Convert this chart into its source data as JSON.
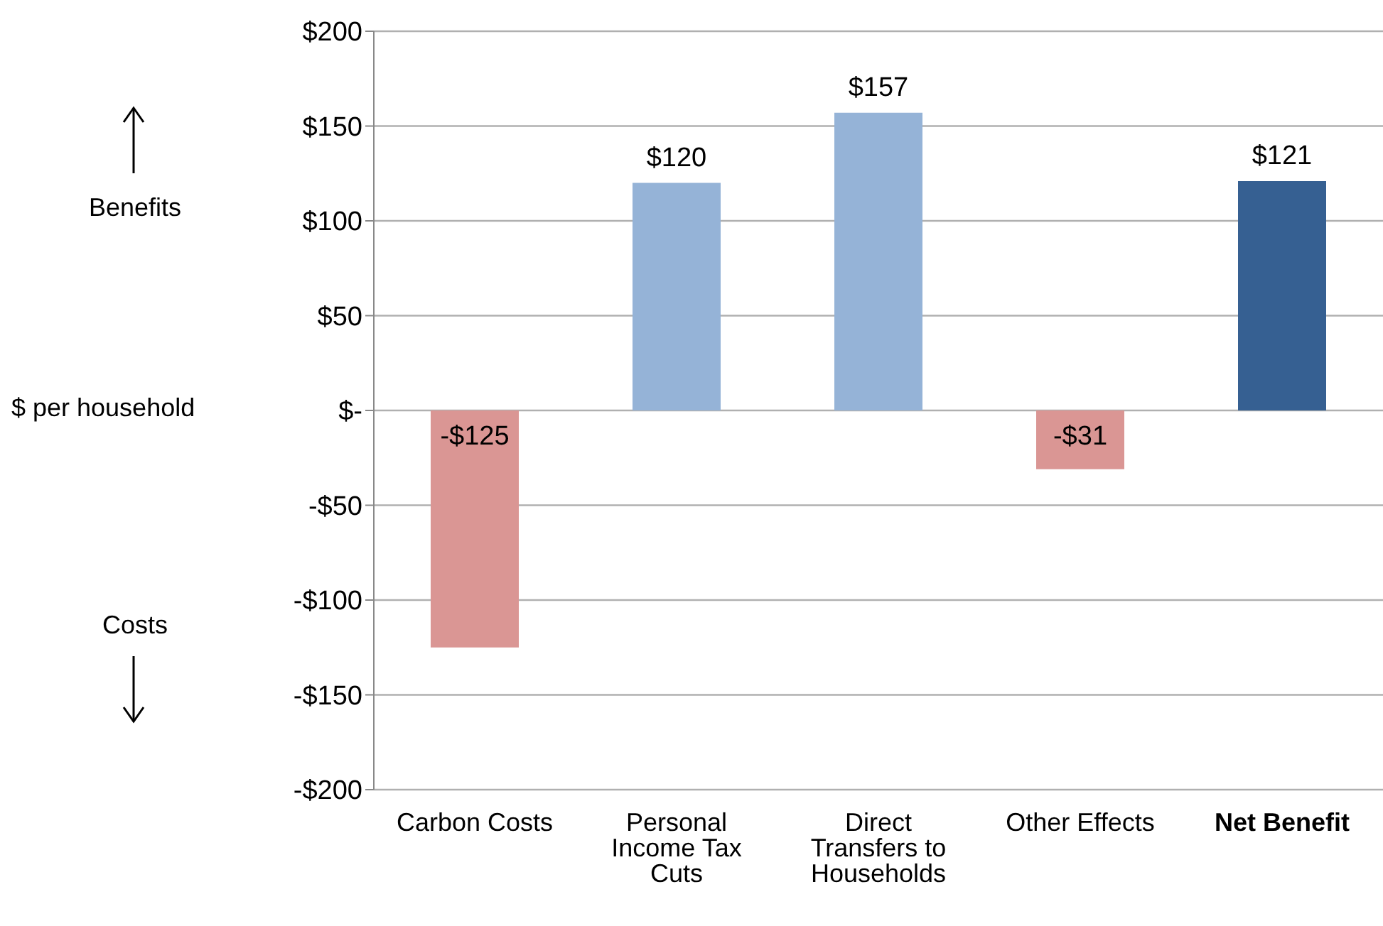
{
  "chart_data": {
    "type": "bar",
    "ylabel": "$ per household",
    "categories": [
      "Carbon Costs",
      "Personal Income Tax Cuts",
      "Direct Transfers to Households",
      "Other Effects",
      "Net Benefit"
    ],
    "values": [
      -125,
      120,
      157,
      -31,
      121
    ],
    "colors": [
      "#da9694",
      "#95b3d7",
      "#95b3d7",
      "#da9694",
      "#366092"
    ],
    "value_labels": [
      "-$125",
      "$120",
      "$157",
      "-$31",
      "$121"
    ],
    "ylim": [
      -200,
      200
    ],
    "yticks": [
      {
        "value": -200,
        "label": "-$200"
      },
      {
        "value": -150,
        "label": "-$150"
      },
      {
        "value": -100,
        "label": "-$100"
      },
      {
        "value": -50,
        "label": "-$50"
      },
      {
        "value": 0,
        "label": "$-"
      },
      {
        "value": 50,
        "label": "$50"
      },
      {
        "value": 100,
        "label": "$100"
      },
      {
        "value": 150,
        "label": "$150"
      },
      {
        "value": 200,
        "label": "$200"
      }
    ],
    "grid": "y",
    "annotations": [
      "Benefits",
      "Costs"
    ]
  }
}
